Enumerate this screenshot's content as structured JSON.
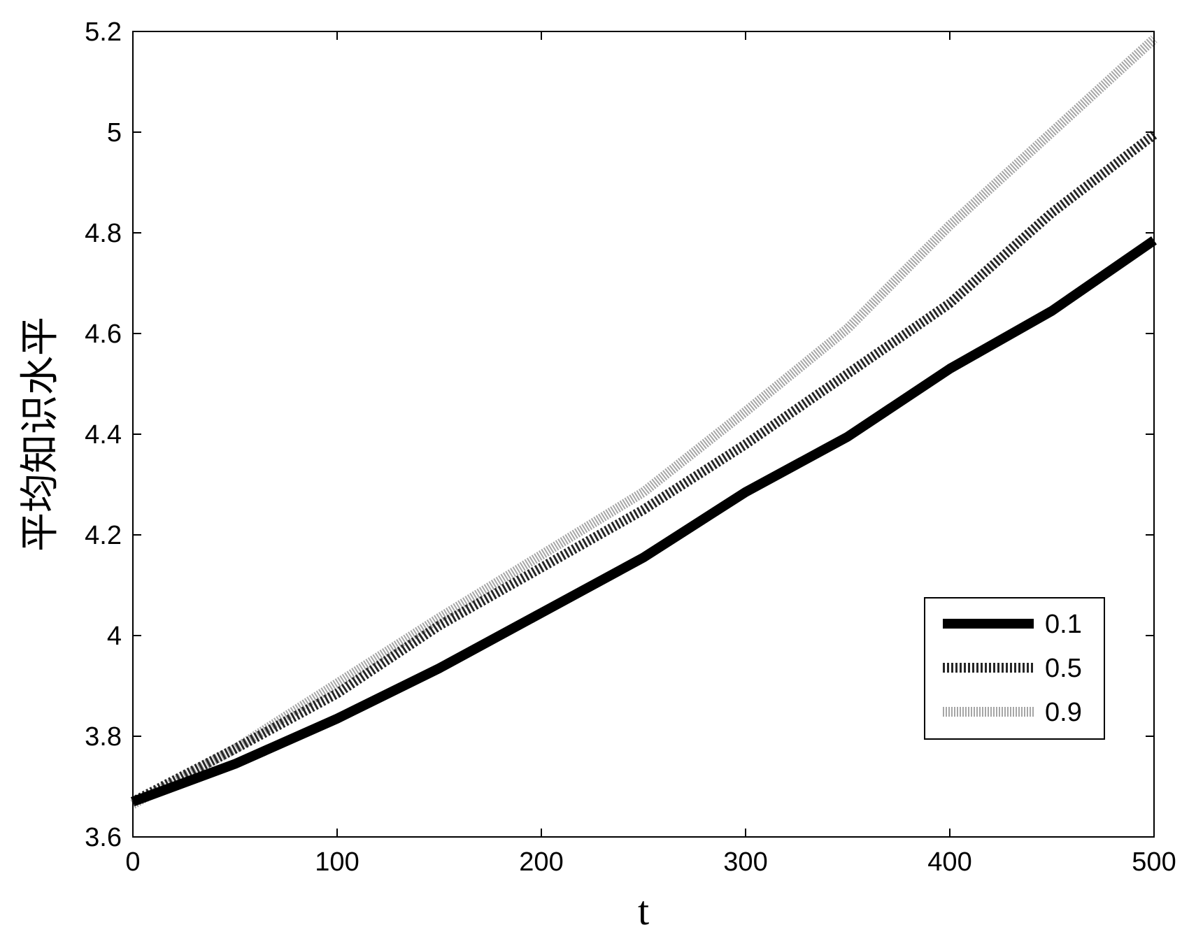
{
  "chart_data": {
    "type": "line",
    "title": "",
    "xlabel": "t",
    "ylabel": "平均知识水平",
    "xlim": [
      0,
      500
    ],
    "ylim": [
      3.6,
      5.2
    ],
    "xticks": [
      0,
      100,
      200,
      300,
      400,
      500
    ],
    "xtick_labels": [
      "0",
      "100",
      "200",
      "300",
      "400",
      "500"
    ],
    "yticks": [
      3.6,
      3.8,
      4.0,
      4.2,
      4.4,
      4.6,
      4.8,
      5.0,
      5.2
    ],
    "ytick_labels": [
      "3.6",
      "3.8",
      "4",
      "4.2",
      "4.4",
      "4.6",
      "4.8",
      "5",
      "5.2"
    ],
    "grid": false,
    "legend_position": "lower-right",
    "x": [
      0,
      50,
      100,
      150,
      200,
      250,
      300,
      350,
      400,
      450,
      500
    ],
    "series": [
      {
        "name": "0.1",
        "color": "#000000",
        "style": "solid",
        "values": [
          3.67,
          3.745,
          3.835,
          3.935,
          4.045,
          4.155,
          4.285,
          4.395,
          4.53,
          4.645,
          4.785
        ]
      },
      {
        "name": "0.5",
        "color": "#262626",
        "style": "dotted",
        "values": [
          3.67,
          3.775,
          3.885,
          4.02,
          4.135,
          4.25,
          4.38,
          4.52,
          4.66,
          4.84,
          4.995
        ]
      },
      {
        "name": "0.9",
        "color": "#a6a6a6",
        "style": "dotted",
        "values": [
          3.665,
          3.775,
          3.905,
          4.035,
          4.16,
          4.285,
          4.445,
          4.61,
          4.815,
          5.0,
          5.185
        ]
      }
    ]
  }
}
